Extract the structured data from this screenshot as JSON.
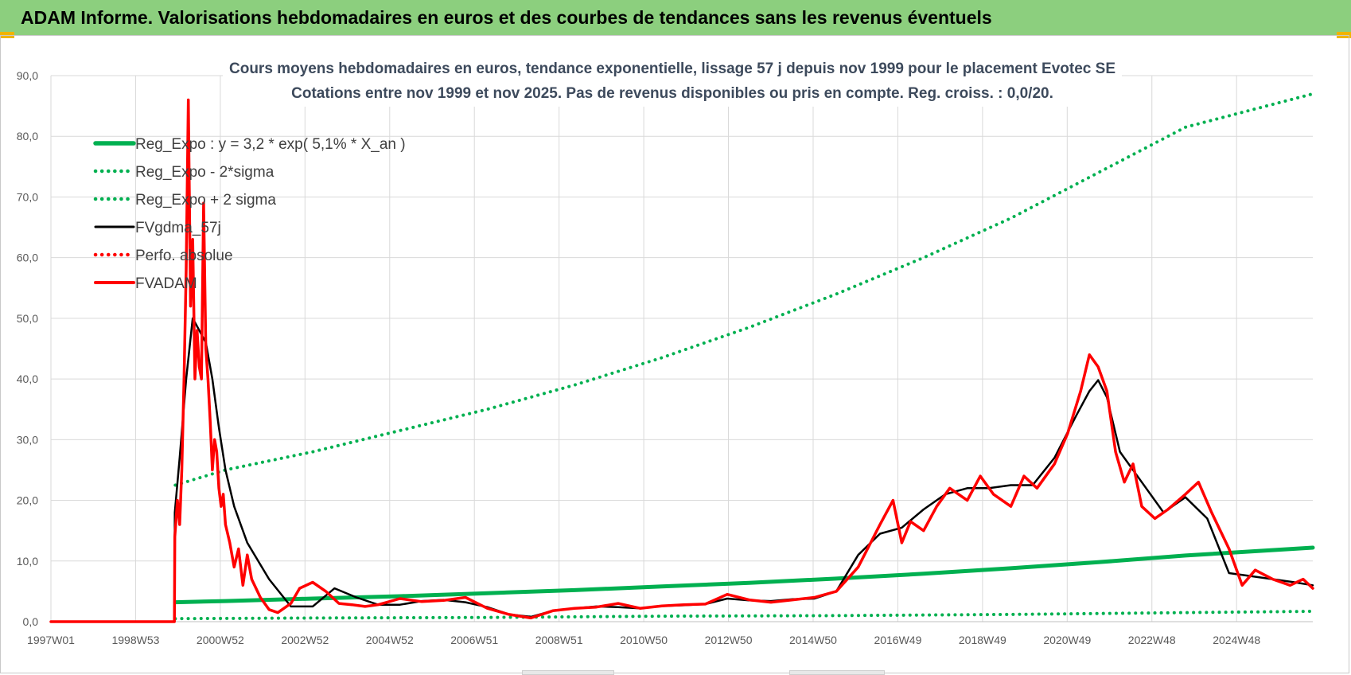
{
  "header": {
    "title": "ADAM Informe. Valorisations hebdomadaires en euros et des courbes de tendances sans les revenus éventuels"
  },
  "colors": {
    "header_bg": "#8ccf7e",
    "reg_expo": "#00b050",
    "sigma": "#00b050",
    "fvgdma": "#000000",
    "perfo": "#ff0000",
    "fvadam": "#ff0000",
    "grid": "#d9d9d9"
  },
  "chart_data": {
    "type": "line",
    "title": "Cours moyens hebdomadaires en euros, tendance exponentielle, lissage 57 j depuis nov 1999 pour le placement Evotec SE",
    "subtitle": "Cotations entre nov 1999 et nov 2025. Pas de revenus disponibles ou pris en compte. Reg. croiss. : 0,0/20.",
    "x_tick_labels": [
      "1997W01",
      "1998W53",
      "2000W52",
      "2002W52",
      "2004W52",
      "2006W51",
      "2008W51",
      "2010W50",
      "2012W50",
      "2014W50",
      "2016W49",
      "2018W49",
      "2020W49",
      "2022W48",
      "2024W48"
    ],
    "x_range": [
      1997.0,
      2025.92
    ],
    "ylim": [
      0,
      90
    ],
    "y_tick_labels": [
      "0,0",
      "10,0",
      "20,0",
      "30,0",
      "40,0",
      "50,0",
      "60,0",
      "70,0",
      "80,0",
      "90,0"
    ],
    "grid": true,
    "legend_position": "top-left",
    "series": [
      {
        "name": "Reg_Expo : y = 3,2 * exp( 5,1% *  X_an )",
        "style": "solid-thick",
        "color": "#00b050",
        "x": [
          1999.85,
          2001,
          2003,
          2005,
          2007,
          2009,
          2011,
          2013,
          2015,
          2017,
          2019,
          2021,
          2023,
          2025.92
        ],
        "values": [
          3.2,
          3.4,
          3.8,
          4.2,
          4.7,
          5.2,
          5.8,
          6.4,
          7.1,
          7.9,
          8.8,
          9.8,
          10.9,
          12.2
        ]
      },
      {
        "name": "Reg_Expo - 2*sigma",
        "style": "dotted",
        "color": "#00b050",
        "x": [
          1999.85,
          2003,
          2007,
          2011,
          2015,
          2019,
          2023,
          2025.92
        ],
        "values": [
          0.5,
          0.6,
          0.7,
          0.9,
          1.0,
          1.2,
          1.5,
          1.7
        ]
      },
      {
        "name": "Reg_Expo + 2 sigma",
        "style": "dotted",
        "color": "#00b050",
        "x": [
          1999.85,
          2001,
          2003,
          2005,
          2007,
          2009,
          2011,
          2013,
          2015,
          2017,
          2019,
          2021,
          2023,
          2025.92
        ],
        "values": [
          22.5,
          25.0,
          28.0,
          31.5,
          35.0,
          39.0,
          43.5,
          48.5,
          54.0,
          60.0,
          66.5,
          74.0,
          81.5,
          87.0
        ]
      },
      {
        "name": "FVgdma_57j",
        "style": "solid",
        "color": "#000000",
        "x": [
          1997.0,
          1999.83,
          1999.84,
          1999.95,
          2000.1,
          2000.25,
          2000.4,
          2000.55,
          2000.7,
          2000.85,
          2001.0,
          2001.2,
          2001.5,
          2002.0,
          2002.5,
          2003.0,
          2003.5,
          2004.0,
          2004.5,
          2005.0,
          2005.5,
          2006.0,
          2006.5,
          2007.0,
          2007.5,
          2008.0,
          2008.5,
          2009.0,
          2009.5,
          2010.0,
          2010.5,
          2011.0,
          2011.5,
          2012.0,
          2012.5,
          2013.0,
          2013.5,
          2014.0,
          2014.5,
          2015.0,
          2015.5,
          2016.0,
          2016.5,
          2017.0,
          2017.5,
          2018.0,
          2018.5,
          2019.0,
          2019.5,
          2020.0,
          2020.5,
          2020.8,
          2021.0,
          2021.2,
          2021.5,
          2022.0,
          2022.5,
          2023.0,
          2023.5,
          2024.0,
          2024.5,
          2025.0,
          2025.5,
          2025.92
        ],
        "values": [
          0,
          0,
          18,
          27,
          40,
          50,
          48,
          46,
          40,
          32,
          25,
          19,
          13,
          7,
          2.5,
          2.5,
          5.5,
          4.0,
          2.8,
          2.8,
          3.4,
          3.6,
          3.2,
          2.4,
          1.2,
          0.8,
          1.8,
          2.2,
          2.5,
          2.4,
          2.2,
          2.6,
          2.7,
          2.9,
          3.8,
          3.5,
          3.4,
          3.7,
          3.8,
          5.0,
          11.0,
          14.5,
          15.5,
          18.5,
          21.0,
          22.0,
          22.0,
          22.5,
          22.5,
          27.0,
          34.0,
          38.0,
          39.8,
          37.0,
          28.0,
          23.0,
          18.0,
          20.5,
          17.0,
          8.0,
          7.5,
          7.0,
          6.5,
          6.0
        ]
      },
      {
        "name": "Perfo. absolue",
        "style": "dotted",
        "color": "#ff0000",
        "x": [],
        "values": []
      },
      {
        "name": "FVADAM",
        "style": "solid-thick",
        "color": "#ff0000",
        "x": [
          1997.0,
          1999.83,
          1999.84,
          1999.9,
          1999.95,
          2000.0,
          2000.05,
          2000.1,
          2000.15,
          2000.2,
          2000.25,
          2000.3,
          2000.35,
          2000.4,
          2000.45,
          2000.5,
          2000.55,
          2000.6,
          2000.65,
          2000.7,
          2000.75,
          2000.8,
          2000.85,
          2000.9,
          2000.95,
          2001.0,
          2001.1,
          2001.2,
          2001.3,
          2001.4,
          2001.5,
          2001.6,
          2001.8,
          2002.0,
          2002.2,
          2002.5,
          2002.7,
          2003.0,
          2003.3,
          2003.6,
          2003.9,
          2004.2,
          2004.5,
          2005.0,
          2005.5,
          2006.0,
          2006.5,
          2007.0,
          2007.5,
          2008.0,
          2008.5,
          2009.0,
          2009.5,
          2010.0,
          2010.5,
          2011.0,
          2011.5,
          2012.0,
          2012.5,
          2013.0,
          2013.5,
          2014.0,
          2014.5,
          2015.0,
          2015.5,
          2016.0,
          2016.3,
          2016.5,
          2016.7,
          2017.0,
          2017.3,
          2017.6,
          2018.0,
          2018.3,
          2018.6,
          2019.0,
          2019.3,
          2019.6,
          2020.0,
          2020.3,
          2020.6,
          2020.8,
          2021.0,
          2021.2,
          2021.4,
          2021.6,
          2021.8,
          2022.0,
          2022.3,
          2022.6,
          2023.0,
          2023.3,
          2023.6,
          2024.0,
          2024.3,
          2024.6,
          2025.0,
          2025.4,
          2025.7,
          2025.92
        ],
        "values": [
          0,
          0,
          14,
          20,
          16,
          25,
          40,
          58,
          86,
          52,
          63,
          40,
          48,
          42,
          40,
          69,
          45,
          40,
          33,
          25,
          30,
          28,
          22,
          19,
          21,
          16,
          13,
          9,
          12,
          6,
          11,
          7,
          4,
          2,
          1.5,
          3,
          5.5,
          6.5,
          5,
          3,
          2.8,
          2.5,
          2.8,
          3.8,
          3.3,
          3.5,
          4.0,
          2.2,
          1.2,
          0.6,
          1.8,
          2.2,
          2.4,
          3.0,
          2.2,
          2.6,
          2.8,
          2.9,
          4.5,
          3.6,
          3.2,
          3.6,
          4.0,
          5.0,
          9.0,
          16.0,
          20.0,
          13.0,
          16.5,
          15.0,
          19.0,
          22.0,
          20.0,
          24.0,
          21.0,
          19.0,
          24.0,
          22.0,
          26.0,
          31.0,
          38.0,
          44.0,
          42.0,
          38.0,
          28.0,
          23.0,
          26.0,
          19.0,
          17.0,
          18.5,
          21.0,
          23.0,
          18.0,
          12.0,
          6.0,
          8.5,
          7.0,
          6.0,
          7.0,
          5.5
        ]
      }
    ]
  }
}
